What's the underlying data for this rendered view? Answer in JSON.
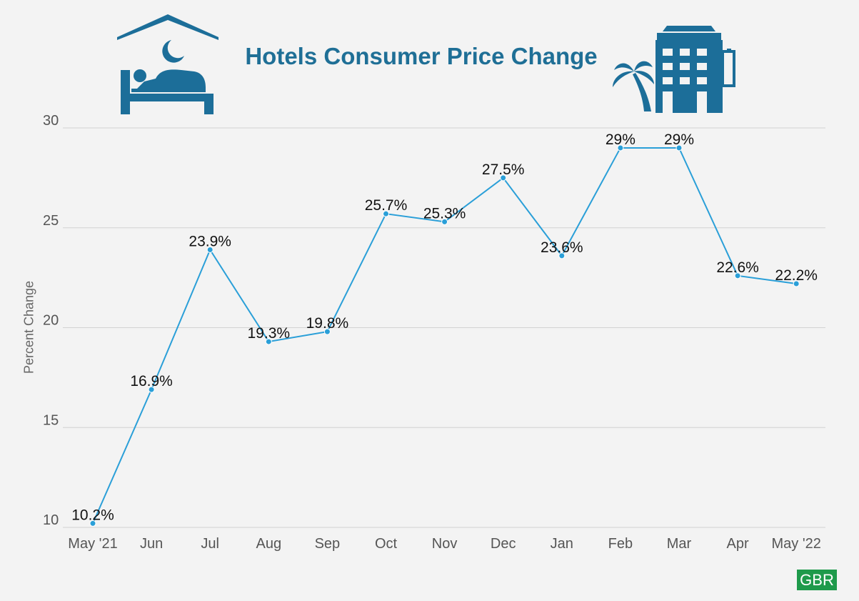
{
  "title": "Hotels Consumer Price Change",
  "brand": "GBR",
  "colors": {
    "line": "#2a9fd8",
    "title": "#1f6f96",
    "icon": "#1c6e99",
    "brand": "#1e9a4b"
  },
  "icons": [
    "bed-sleeping-icon",
    "hotel-building-icon",
    "palm-tree-icon"
  ],
  "chart_data": {
    "type": "line",
    "title": "Hotels Consumer Price Change",
    "xlabel": "",
    "ylabel": "Percent Change",
    "categories": [
      "May '21",
      "Jun",
      "Jul",
      "Aug",
      "Sep",
      "Oct",
      "Nov",
      "Dec",
      "Jan",
      "Feb",
      "Mar",
      "Apr",
      "May '22"
    ],
    "values": [
      10.2,
      16.9,
      23.9,
      19.3,
      19.8,
      25.7,
      25.3,
      27.5,
      23.6,
      29,
      29,
      22.6,
      22.2
    ],
    "labels": [
      "10.2%",
      "16.9%",
      "23.9%",
      "19.3%",
      "19.8%",
      "25.7%",
      "25.3%",
      "27.5%",
      "23.6%",
      "29%",
      "29%",
      "22.6%",
      "22.2%"
    ],
    "yticks": [
      10,
      15,
      20,
      25,
      30
    ],
    "ylim": [
      10,
      30
    ],
    "grid": true,
    "legend": "none"
  }
}
